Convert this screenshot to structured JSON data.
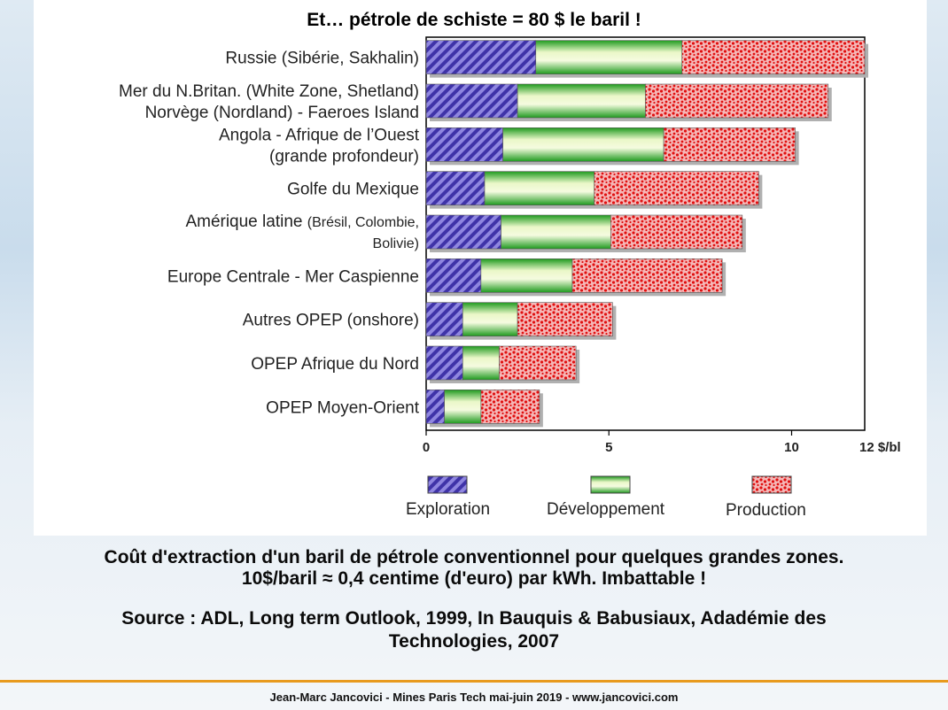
{
  "chart_data": {
    "type": "bar",
    "orientation": "horizontal",
    "stacked": true,
    "title": "Et… pétrole de schiste = 80 $ le baril !",
    "categories": [
      [
        "Russie (Sibérie, Sakhalin)"
      ],
      [
        "Mer du N.Britan. (White Zone, Shetland)",
        "Norvège (Nordland) - Faeroes Island"
      ],
      [
        "Angola - Afrique de l’Ouest",
        "(grande profondeur)"
      ],
      [
        "Golfe du Mexique"
      ],
      [
        "Amérique latine ",
        "(Brésil, Colombie,",
        "Bolivie)"
      ],
      [
        "Europe Centrale - Mer Caspienne"
      ],
      [
        "Autres OPEP (onshore)"
      ],
      [
        "OPEP Afrique du Nord"
      ],
      [
        "OPEP Moyen-Orient"
      ]
    ],
    "series": [
      {
        "name": "Exploration",
        "color": "#4b3fb5",
        "values": [
          3.0,
          2.5,
          2.1,
          1.6,
          2.05,
          1.5,
          1.0,
          1.0,
          0.5
        ]
      },
      {
        "name": "Développement",
        "color": "#3aa83a",
        "values": [
          4.0,
          3.5,
          4.4,
          3.0,
          3.0,
          2.5,
          1.5,
          1.0,
          1.0
        ]
      },
      {
        "name": "Production",
        "color": "#e81c1c",
        "values": [
          5.0,
          5.0,
          3.6,
          4.5,
          3.6,
          4.1,
          2.6,
          2.1,
          1.6
        ]
      }
    ],
    "x_ticks": [
      "0",
      "5",
      "10"
    ],
    "x_tick_values": [
      0,
      5,
      10
    ],
    "xlim": [
      0,
      12
    ],
    "x_end_label": "12 $/bl",
    "legend_position": "bottom"
  },
  "caption": {
    "line1": "Coût d'extraction d'un baril de pétrole conventionnel pour quelques grandes zones.",
    "line2": "10$/baril ≈ 0,4 centime (d'euro) par kWh. Imbattable !"
  },
  "source": {
    "line1": "Source : ADL, Long term Outlook, 1999, In Bauquis & Babusiaux, Adadémie des",
    "line2": "Technologies, 2007"
  },
  "footer": "Jean-Marc Jancovici - Mines Paris Tech mai-juin 2019 - www.jancovici.com"
}
